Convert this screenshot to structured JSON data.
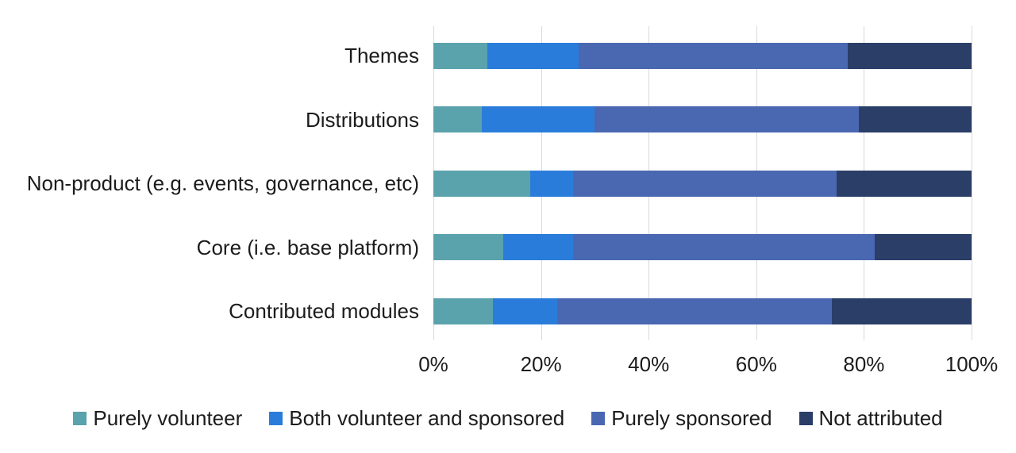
{
  "chart_data": {
    "type": "bar",
    "orientation": "horizontal",
    "stacked": true,
    "title": "",
    "xlabel": "",
    "ylabel": "",
    "grid": true,
    "legend_position": "bottom",
    "categories": [
      "Themes",
      "Distributions",
      "Non-product (e.g. events, governance, etc)",
      "Core (i.e. base platform)",
      "Contributed modules"
    ],
    "series": [
      {
        "name": "Purely volunteer",
        "color": "#5AA2AC",
        "values": [
          10,
          9,
          18,
          13,
          11
        ]
      },
      {
        "name": "Both volunteer and sponsored",
        "color": "#2A7CDA",
        "values": [
          17,
          21,
          8,
          13,
          12
        ]
      },
      {
        "name": "Purely sponsored",
        "color": "#4A67B1",
        "values": [
          50,
          49,
          49,
          56,
          51
        ]
      },
      {
        "name": "Not attributed",
        "color": "#2A3E68",
        "values": [
          23,
          21,
          25,
          18,
          26
        ]
      }
    ],
    "x_axis": {
      "min": 0,
      "max": 100,
      "tick_values": [
        0,
        20,
        40,
        60,
        80,
        100
      ],
      "tick_labels": [
        "0%",
        "20%",
        "40%",
        "60%",
        "80%",
        "100%"
      ]
    }
  }
}
